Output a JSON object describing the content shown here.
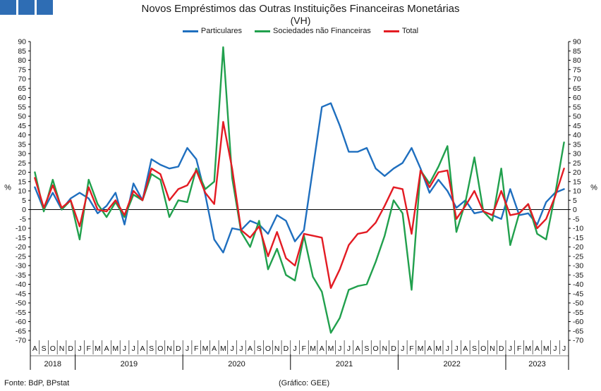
{
  "header": {
    "logo_icon": "bdp-logo-icon",
    "title": "Novos Empréstimos das Outras Instituições Financeiras Monetárias",
    "subtitle": "(VH)"
  },
  "footer": {
    "source": "Fonte: BdP, BPstat",
    "credit": "(Gráfico: GEE)"
  },
  "chart_data": {
    "type": "line",
    "title": "Novos Empréstimos das Outras Instituições Financeiras Monetárias",
    "subtitle": "(VH)",
    "ylabel_left": "%",
    "ylabel_right": "%",
    "ylim": [
      -70,
      90
    ],
    "ytick_step": 5,
    "grid": false,
    "legend": "top-center",
    "x": [
      "2018-08",
      "2018-09",
      "2018-10",
      "2018-11",
      "2018-12",
      "2019-01",
      "2019-02",
      "2019-03",
      "2019-04",
      "2019-05",
      "2019-06",
      "2019-07",
      "2019-08",
      "2019-09",
      "2019-10",
      "2019-11",
      "2019-12",
      "2020-01",
      "2020-02",
      "2020-03",
      "2020-04",
      "2020-05",
      "2020-06",
      "2020-07",
      "2020-08",
      "2020-09",
      "2020-10",
      "2020-11",
      "2020-12",
      "2021-01",
      "2021-02",
      "2021-03",
      "2021-04",
      "2021-05",
      "2021-06",
      "2021-07",
      "2021-08",
      "2021-09",
      "2021-10",
      "2021-11",
      "2021-12",
      "2022-01",
      "2022-02",
      "2022-03",
      "2022-04",
      "2022-05",
      "2022-06",
      "2022-07",
      "2022-08",
      "2022-09",
      "2022-10",
      "2022-11",
      "2022-12",
      "2023-01",
      "2023-02",
      "2023-03",
      "2023-04",
      "2023-05",
      "2023-06",
      "2023-07"
    ],
    "month_labels": [
      "A",
      "S",
      "O",
      "N",
      "D",
      "J",
      "F",
      "M",
      "A",
      "M",
      "J",
      "J",
      "A",
      "S",
      "O",
      "N",
      "D",
      "J",
      "F",
      "M",
      "A",
      "M",
      "J",
      "J",
      "A",
      "S",
      "O",
      "N",
      "D",
      "J",
      "F",
      "M",
      "A",
      "M",
      "J",
      "J",
      "A",
      "S",
      "O",
      "N",
      "D",
      "J",
      "F",
      "M",
      "A",
      "M",
      "J",
      "J",
      "A",
      "S",
      "O",
      "N",
      "D",
      "J",
      "F",
      "M",
      "A",
      "M",
      "J",
      "J"
    ],
    "years": [
      {
        "label": "2018",
        "start": 0,
        "end": 4
      },
      {
        "label": "2019",
        "start": 5,
        "end": 16
      },
      {
        "label": "2020",
        "start": 17,
        "end": 28
      },
      {
        "label": "2021",
        "start": 29,
        "end": 40
      },
      {
        "label": "2022",
        "start": 41,
        "end": 52
      },
      {
        "label": "2023",
        "start": 53,
        "end": 59
      }
    ],
    "series": [
      {
        "name": "Particulares",
        "color": "#1f6fbf",
        "values": [
          12,
          0,
          9,
          0,
          6,
          9,
          6,
          -2,
          2,
          9,
          -8,
          14,
          5,
          27,
          24,
          22,
          23,
          33,
          27,
          8,
          -16,
          -23,
          -10,
          -11,
          -6,
          -8,
          -13,
          -3,
          -6,
          -17,
          -11,
          22,
          55,
          57,
          45,
          31,
          31,
          33,
          22,
          18,
          22,
          25,
          33,
          22,
          9,
          16,
          10,
          1,
          5,
          -2,
          -1,
          -3,
          -5,
          11,
          -3,
          -2,
          -8,
          4,
          9,
          11
        ]
      },
      {
        "name": "Sociedades não Financeiras",
        "color": "#21a04d",
        "values": [
          20,
          -1,
          16,
          0,
          5,
          -16,
          16,
          3,
          -4,
          4,
          -4,
          8,
          5,
          19,
          16,
          -4,
          5,
          4,
          22,
          11,
          15,
          87,
          17,
          -12,
          -20,
          -6,
          -32,
          -21,
          -35,
          -38,
          -14,
          -36,
          -44,
          -66,
          -58,
          -43,
          -41,
          -40,
          -28,
          -14,
          5,
          -2,
          -43,
          21,
          14,
          23,
          34,
          -12,
          4,
          28,
          -1,
          -6,
          22,
          -19,
          -2,
          3,
          -13,
          -16,
          8,
          36
        ]
      },
      {
        "name": "Total",
        "color": "#e31b23",
        "values": [
          17,
          1,
          13,
          1,
          5,
          -9,
          12,
          0,
          -1,
          5,
          -3,
          10,
          5,
          22,
          19,
          5,
          11,
          13,
          21,
          9,
          3,
          47,
          22,
          -11,
          -15,
          -9,
          -25,
          -12,
          -26,
          -30,
          -13,
          -14,
          -15,
          -42,
          -32,
          -19,
          -13,
          -12,
          -7,
          2,
          12,
          11,
          -13,
          21,
          12,
          20,
          21,
          -5,
          2,
          10,
          -1,
          -3,
          10,
          -3,
          -2,
          3,
          -10,
          -5,
          7,
          22
        ]
      }
    ]
  }
}
